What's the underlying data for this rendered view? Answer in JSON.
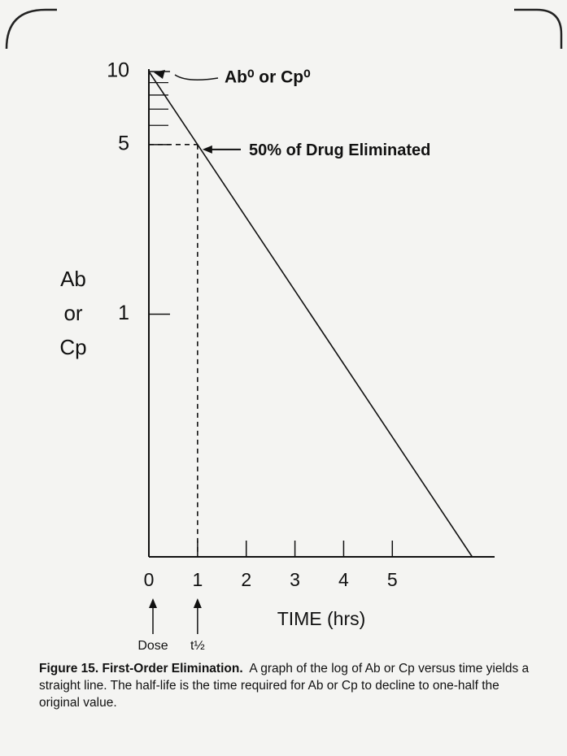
{
  "chart_data": {
    "type": "line",
    "y_label": [
      "Ab",
      "or",
      "Cp"
    ],
    "x_label": "TIME (hrs)",
    "x_notes": [
      {
        "x": 0,
        "text": "Dose"
      },
      {
        "x": 1,
        "text": "t½"
      }
    ],
    "log_y": true,
    "xlim": [
      0,
      7.1
    ],
    "xticks": [
      0,
      1,
      2,
      3,
      4,
      5
    ],
    "ylim": [
      0.1,
      10
    ],
    "yticks": [
      1,
      5,
      10
    ],
    "yminor": [
      6,
      7,
      8,
      9
    ],
    "series": [
      {
        "color": "#111111",
        "x": [
          0,
          1,
          6.64
        ],
        "values": [
          10,
          5,
          0.1
        ]
      }
    ],
    "guides": {
      "x": 1,
      "y": 5
    },
    "annotations": [
      {
        "text": "Ab⁰ or Cp⁰",
        "x": 0,
        "y": 10
      },
      {
        "text": "50% of Drug Eliminated",
        "x": 1,
        "y": 5
      }
    ],
    "caption_title": "Figure 15. First-Order Elimination.",
    "caption_text": "A graph of the log of Ab or Cp versus time yields a straight line. The half-life is the time required for Ab or Cp to decline to one-half the original value."
  }
}
